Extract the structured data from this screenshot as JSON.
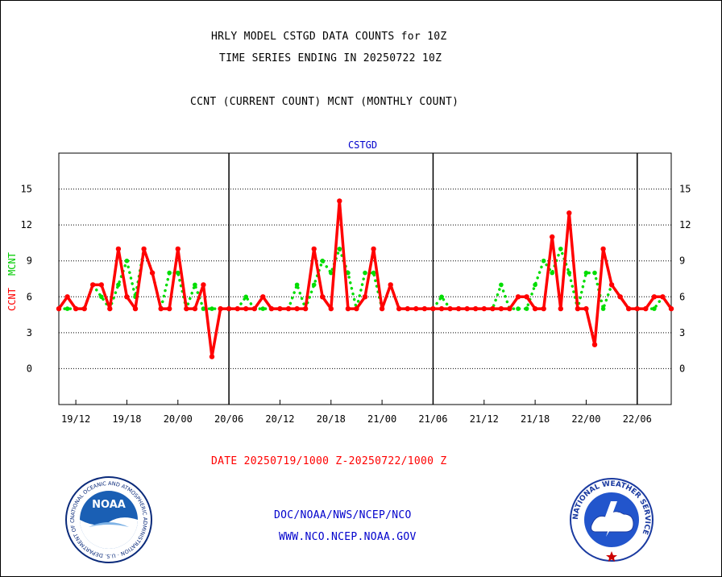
{
  "header": {
    "title_line1": "HRLY MODEL CSTGD DATA COUNTS for 10Z",
    "title_line2": "TIME SERIES ENDING IN 20250722 10Z",
    "subtitle": "CCNT (CURRENT COUNT) MCNT (MONTHLY COUNT)"
  },
  "chart_data": {
    "type": "line",
    "title": "CSTGD",
    "ylabel_parts": [
      "CCNT",
      "MCNT"
    ],
    "ylim": [
      -3,
      18
    ],
    "yticks": [
      0,
      3,
      6,
      9,
      12,
      15
    ],
    "grid": true,
    "x_range_hours": [
      0,
      72
    ],
    "x_tick_hours": [
      2,
      8,
      14,
      20,
      26,
      32,
      38,
      44,
      50,
      56,
      62,
      68
    ],
    "x_tick_labels": [
      "19/12",
      "19/18",
      "20/00",
      "20/06",
      "20/12",
      "20/18",
      "21/00",
      "21/06",
      "21/12",
      "21/18",
      "22/00",
      "22/06"
    ],
    "day_boundaries_hours": [
      20,
      44,
      68
    ],
    "series": [
      {
        "name": "CCNT",
        "color": "#ff0000",
        "style": "solid",
        "values": [
          5,
          6,
          5,
          5,
          7,
          7,
          5,
          10,
          6,
          5,
          10,
          8,
          5,
          5,
          10,
          5,
          5,
          7,
          1,
          5,
          5,
          5,
          5,
          5,
          6,
          5,
          5,
          5,
          5,
          5,
          10,
          6,
          5,
          14,
          5,
          5,
          6,
          10,
          5,
          7,
          5,
          5,
          5,
          5,
          5,
          5,
          5,
          5,
          5,
          5,
          5,
          5,
          5,
          5,
          6,
          6,
          5,
          5,
          11,
          5,
          13,
          5,
          5,
          2,
          10,
          7,
          6,
          5,
          5,
          5,
          6,
          6,
          5
        ]
      },
      {
        "name": "MCNT",
        "color": "#00dd00",
        "style": "dotted",
        "values": [
          5,
          5,
          5,
          5,
          7,
          6,
          5,
          7,
          9,
          6,
          10,
          8,
          5,
          8,
          8,
          5,
          7,
          5,
          5,
          5,
          5,
          5,
          6,
          5,
          5,
          5,
          5,
          5,
          7,
          5,
          7,
          9,
          8,
          10,
          8,
          5,
          8,
          8,
          5,
          7,
          5,
          5,
          5,
          5,
          5,
          6,
          5,
          5,
          5,
          5,
          5,
          5,
          7,
          5,
          5,
          5,
          7,
          9,
          8,
          10,
          8,
          5,
          8,
          8,
          5,
          7,
          6,
          5,
          5,
          5,
          5,
          6,
          5
        ]
      }
    ]
  },
  "footer": {
    "date_range": "DATE 20250719/1000 Z-20250722/1000 Z",
    "org_line": "DOC/NOAA/NWS/NCEP/NCO",
    "url_line": "WWW.NCO.NCEP.NOAA.GOV",
    "noaa_logo_text": "NOAA",
    "noaa_ring_text": "NATIONAL OCEANIC AND ATMOSPHERIC ADMINISTRATION · U.S. DEPARTMENT OF COMMERCE ·",
    "nws_ring_text": "NATIONAL WEATHER SERVICE"
  }
}
